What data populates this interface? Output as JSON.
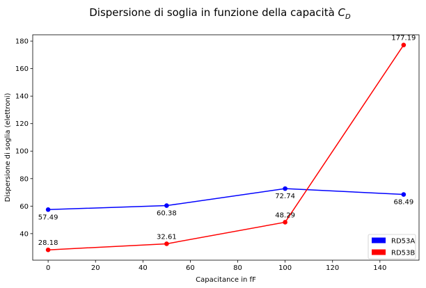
{
  "chart_data": {
    "type": "line",
    "title_main": "Dispersione di soglia in funzione della capacità ",
    "title_symbol": "C",
    "title_subscript": "D",
    "xlabel": "Capacitance in fF",
    "ylabel": "Dispersione di soglia (elettroni)",
    "x": [
      0,
      50,
      100,
      150
    ],
    "xlim": [
      -6.5,
      156.5
    ],
    "ylim": [
      20.7,
      184.6
    ],
    "xticks": [
      0,
      20,
      40,
      60,
      80,
      100,
      120,
      140
    ],
    "yticks": [
      40,
      60,
      80,
      100,
      120,
      140,
      160,
      180
    ],
    "grid": false,
    "legend_position": "lower-right",
    "series": [
      {
        "name": "RD53A",
        "color": "#0000ff",
        "values": [
          57.49,
          60.38,
          72.74,
          68.49
        ],
        "labels": [
          "57.49",
          "60.38",
          "72.74",
          "68.49"
        ],
        "label_side": "below"
      },
      {
        "name": "RD53B",
        "color": "#ff0000",
        "values": [
          28.18,
          32.61,
          48.29,
          177.19
        ],
        "labels": [
          "28.18",
          "32.61",
          "48.29",
          "177.19"
        ],
        "label_side": "above"
      }
    ]
  }
}
